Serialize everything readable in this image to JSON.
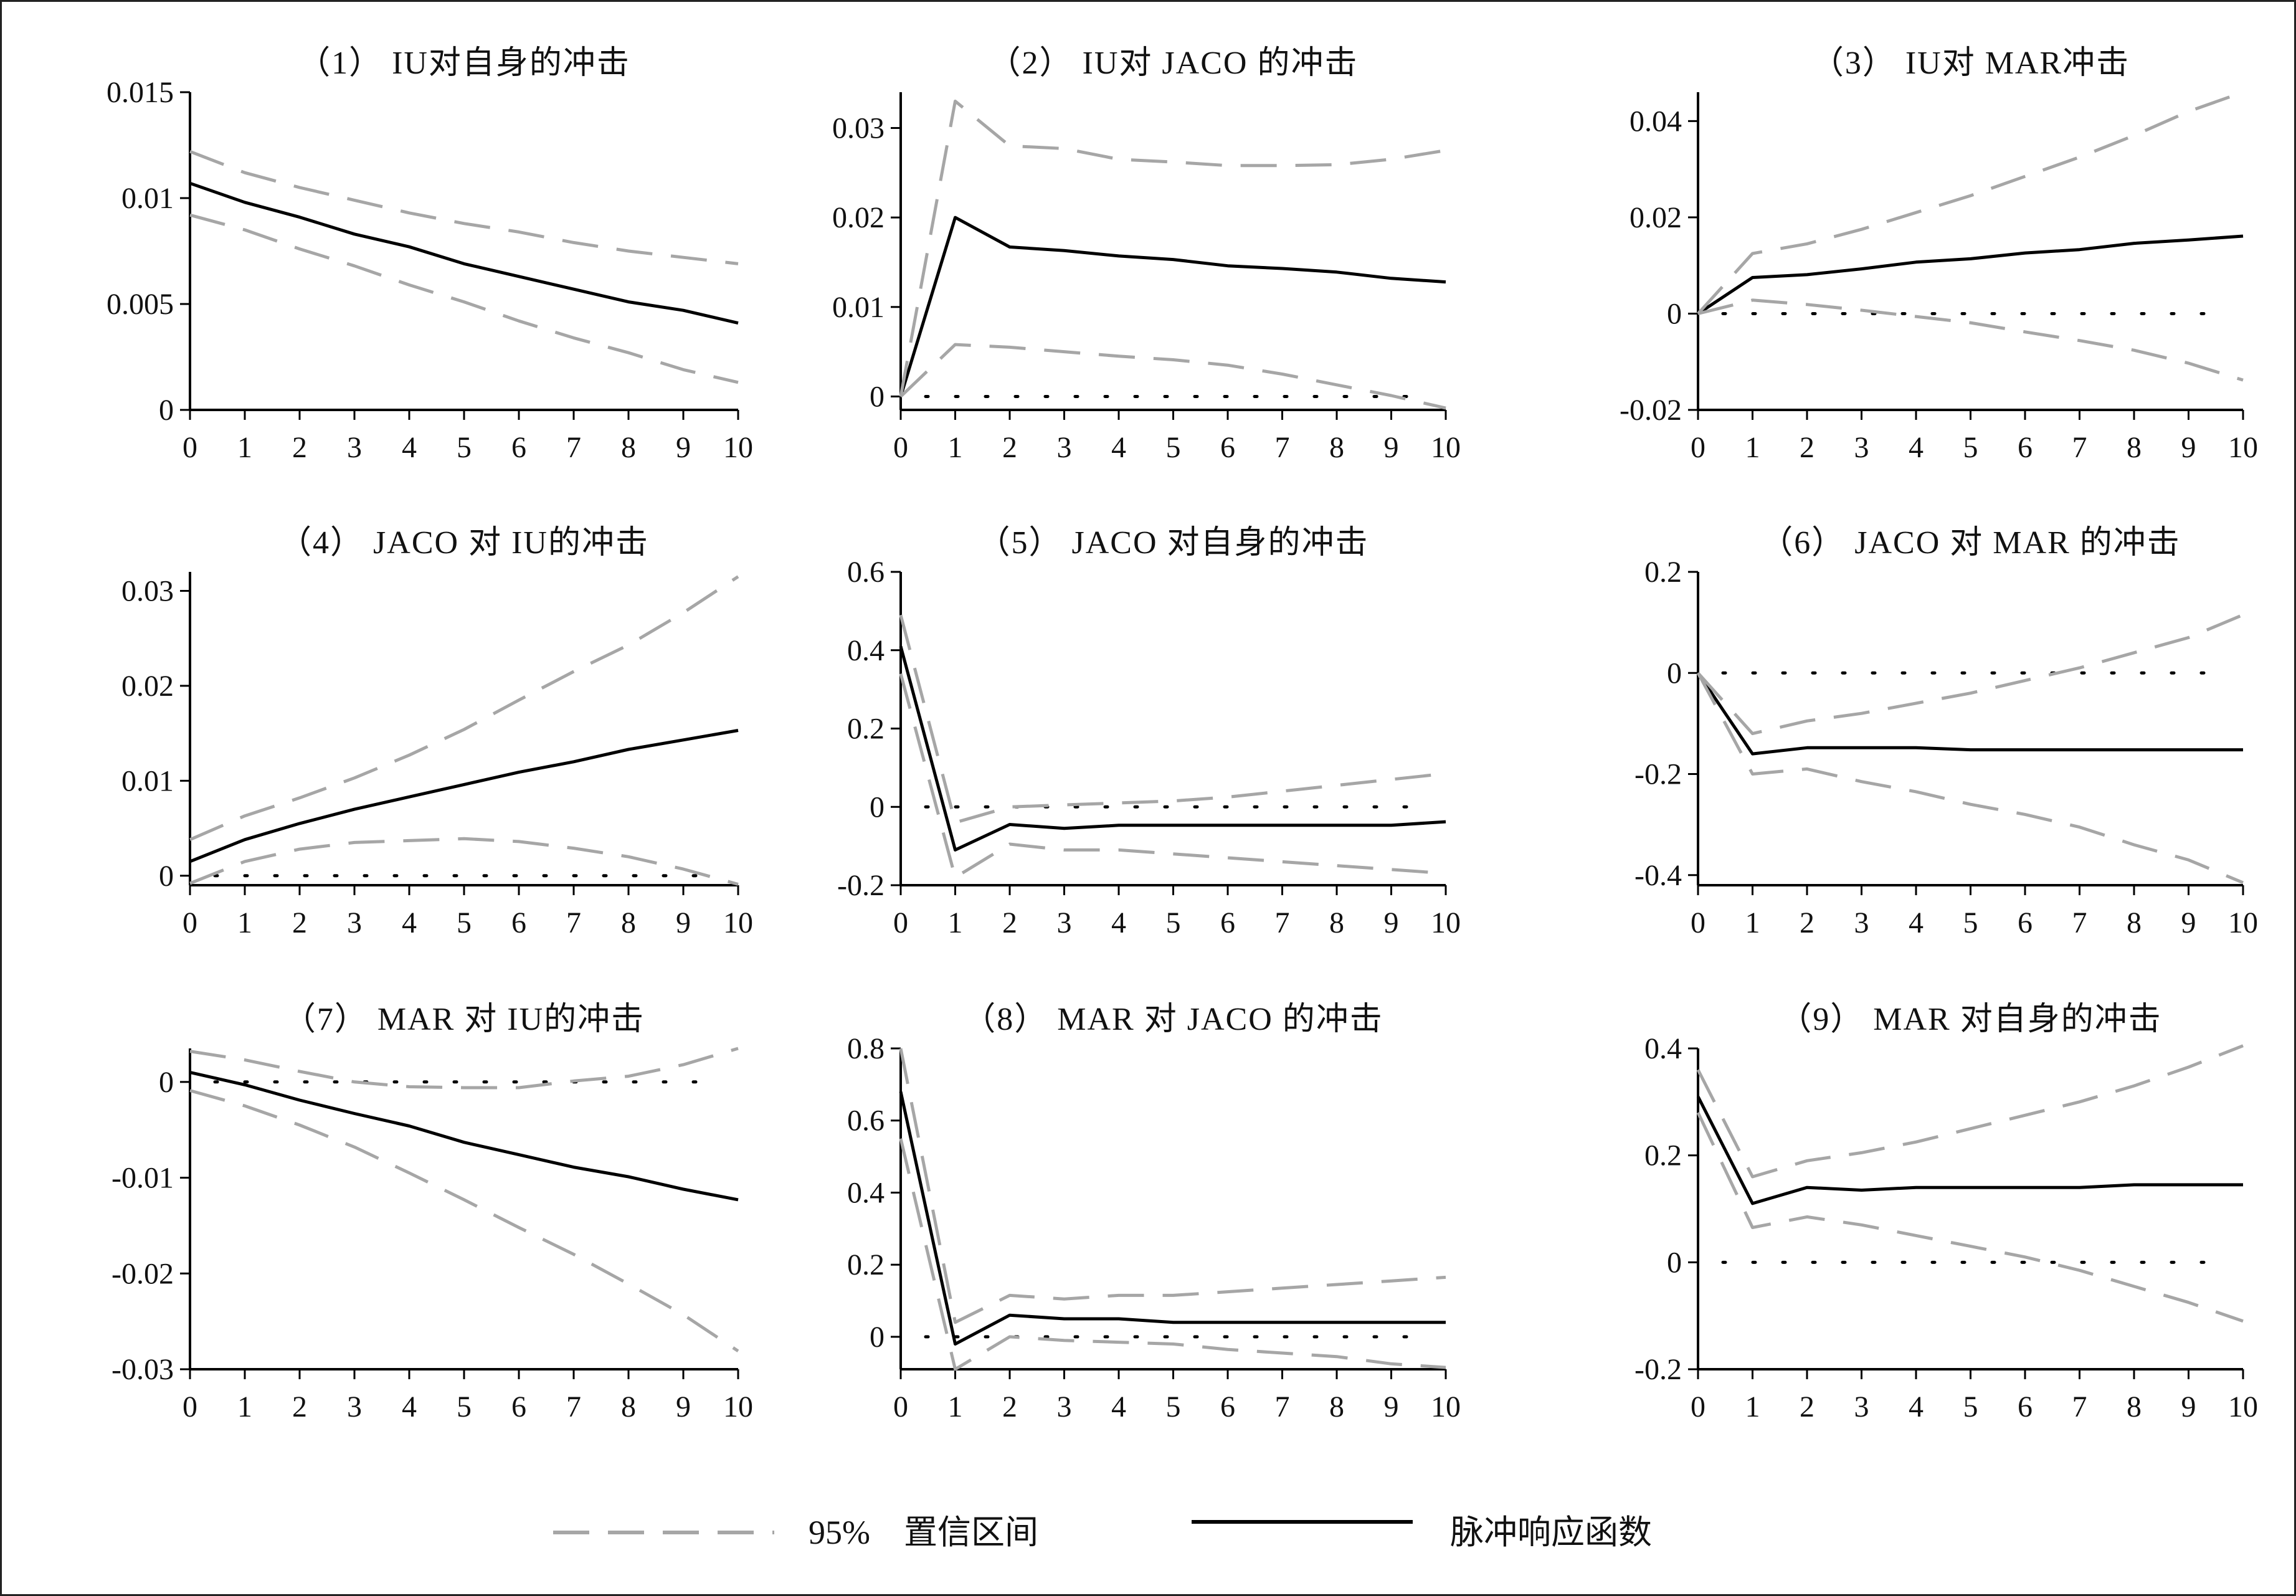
{
  "colors": {
    "irf": "#000000",
    "ci": "#a6a6a6",
    "zero": "#000000"
  },
  "legend": {
    "ci_label": "95%　置信区间",
    "irf_label": "脉冲响应函数",
    "ci_style": "dashed-gray",
    "irf_style": "solid-black"
  },
  "chart_data": [
    {
      "type": "line",
      "title": "（1） IU对自身的冲击",
      "x": [
        0,
        1,
        2,
        3,
        4,
        5,
        6,
        7,
        8,
        9,
        10
      ],
      "xlim": [
        0,
        10
      ],
      "ylim": [
        0,
        0.015
      ],
      "yticks": [
        "0",
        "0.005",
        "0.01",
        "0.015"
      ],
      "ytick_values": [
        0,
        0.005,
        0.01,
        0.015
      ],
      "zero_line": false,
      "series": [
        {
          "role": "irf",
          "values": [
            0.0107,
            0.0098,
            0.0091,
            0.0083,
            0.0077,
            0.0069,
            0.0063,
            0.0057,
            0.0051,
            0.0047,
            0.0041
          ]
        },
        {
          "role": "upper",
          "values": [
            0.0122,
            0.0112,
            0.0105,
            0.0099,
            0.0093,
            0.0088,
            0.0084,
            0.0079,
            0.0075,
            0.0072,
            0.0069
          ]
        },
        {
          "role": "lower",
          "values": [
            0.0092,
            0.0085,
            0.0076,
            0.0068,
            0.0059,
            0.0051,
            0.0042,
            0.0034,
            0.0027,
            0.0019,
            0.0013
          ]
        }
      ]
    },
    {
      "type": "line",
      "title": "（2） IU对 JACO 的冲击",
      "x": [
        0,
        1,
        2,
        3,
        4,
        5,
        6,
        7,
        8,
        9,
        10
      ],
      "xlim": [
        0,
        10
      ],
      "ylim": [
        -0.0015,
        0.034
      ],
      "yticks": [
        "0",
        "0.01",
        "0.02",
        "0.03"
      ],
      "ytick_values": [
        0,
        0.01,
        0.02,
        0.03
      ],
      "zero_line": true,
      "series": [
        {
          "role": "irf",
          "values": [
            0,
            0.02,
            0.0167,
            0.0163,
            0.0157,
            0.0153,
            0.0146,
            0.0143,
            0.0139,
            0.0132,
            0.0128
          ]
        },
        {
          "role": "upper",
          "values": [
            0,
            0.033,
            0.028,
            0.0277,
            0.0265,
            0.0262,
            0.0258,
            0.0258,
            0.0259,
            0.0265,
            0.0275
          ]
        },
        {
          "role": "lower",
          "values": [
            0,
            0.0058,
            0.0055,
            0.005,
            0.0045,
            0.0041,
            0.0035,
            0.0025,
            0.0013,
            0.0001,
            -0.0013
          ]
        }
      ]
    },
    {
      "type": "line",
      "title": "（3） IU对 MAR冲击",
      "x": [
        0,
        1,
        2,
        3,
        4,
        5,
        6,
        7,
        8,
        9,
        10
      ],
      "xlim": [
        0,
        10
      ],
      "ylim": [
        -0.02,
        0.046
      ],
      "yticks": [
        "-0.02",
        "0",
        "0.02",
        "0.04"
      ],
      "ytick_values": [
        -0.02,
        0,
        0.02,
        0.04
      ],
      "zero_line": true,
      "series": [
        {
          "role": "irf",
          "values": [
            0,
            0.0075,
            0.0081,
            0.0093,
            0.0107,
            0.0114,
            0.0126,
            0.0133,
            0.0146,
            0.0153,
            0.0161
          ]
        },
        {
          "role": "upper",
          "values": [
            0,
            0.0125,
            0.0145,
            0.0175,
            0.021,
            0.0245,
            0.0285,
            0.0325,
            0.037,
            0.042,
            0.046
          ]
        },
        {
          "role": "lower",
          "values": [
            0,
            0.0028,
            0.0019,
            0.0007,
            -0.0006,
            -0.0019,
            -0.0038,
            -0.0056,
            -0.0076,
            -0.0103,
            -0.0138
          ]
        }
      ]
    },
    {
      "type": "line",
      "title": "（4） JACO 对 IU的冲击",
      "x": [
        0,
        1,
        2,
        3,
        4,
        5,
        6,
        7,
        8,
        9,
        10
      ],
      "xlim": [
        0,
        10
      ],
      "ylim": [
        -0.001,
        0.032
      ],
      "yticks": [
        "0",
        "0.01",
        "0.02",
        "0.03"
      ],
      "ytick_values": [
        0,
        0.01,
        0.02,
        0.03
      ],
      "zero_line": true,
      "series": [
        {
          "role": "irf",
          "values": [
            0.0015,
            0.0038,
            0.0055,
            0.007,
            0.0083,
            0.0096,
            0.0109,
            0.012,
            0.0133,
            0.0143,
            0.0153
          ]
        },
        {
          "role": "upper",
          "values": [
            0.0038,
            0.0063,
            0.0082,
            0.0103,
            0.0127,
            0.0154,
            0.0185,
            0.0215,
            0.0243,
            0.0277,
            0.0315
          ]
        },
        {
          "role": "lower",
          "values": [
            -0.0008,
            0.0015,
            0.0028,
            0.0035,
            0.0037,
            0.0039,
            0.0036,
            0.0029,
            0.002,
            0.0007,
            -0.0009
          ]
        }
      ]
    },
    {
      "type": "line",
      "title": "（5） JACO 对自身的冲击",
      "x": [
        0,
        1,
        2,
        3,
        4,
        5,
        6,
        7,
        8,
        9,
        10
      ],
      "xlim": [
        0,
        10
      ],
      "ylim": [
        -0.2,
        0.6
      ],
      "yticks": [
        "-0.2",
        "0",
        "0.2",
        "0.4",
        "0.6"
      ],
      "ytick_values": [
        -0.2,
        0,
        0.2,
        0.4,
        0.6
      ],
      "zero_line": true,
      "series": [
        {
          "role": "irf",
          "values": [
            0.41,
            -0.11,
            -0.045,
            -0.055,
            -0.047,
            -0.047,
            -0.047,
            -0.047,
            -0.047,
            -0.047,
            -0.038
          ]
        },
        {
          "role": "upper",
          "values": [
            0.49,
            -0.04,
            0,
            0.005,
            0.01,
            0.015,
            0.025,
            0.04,
            0.055,
            0.07,
            0.085
          ]
        },
        {
          "role": "lower",
          "values": [
            0.34,
            -0.18,
            -0.095,
            -0.11,
            -0.11,
            -0.12,
            -0.13,
            -0.14,
            -0.15,
            -0.16,
            -0.17
          ]
        }
      ]
    },
    {
      "type": "line",
      "title": "（6） JACO 对 MAR 的冲击",
      "x": [
        0,
        1,
        2,
        3,
        4,
        5,
        6,
        7,
        8,
        9,
        10
      ],
      "xlim": [
        0,
        10
      ],
      "ylim": [
        -0.42,
        0.2
      ],
      "yticks": [
        "-0.4",
        "-0.2",
        "0",
        "0.2"
      ],
      "ytick_values": [
        -0.4,
        -0.2,
        0,
        0.2
      ],
      "zero_line": true,
      "series": [
        {
          "role": "irf",
          "values": [
            0,
            -0.16,
            -0.148,
            -0.148,
            -0.148,
            -0.152,
            -0.152,
            -0.152,
            -0.152,
            -0.152,
            -0.152
          ]
        },
        {
          "role": "upper",
          "values": [
            0,
            -0.12,
            -0.095,
            -0.08,
            -0.06,
            -0.04,
            -0.015,
            0.01,
            0.04,
            0.07,
            0.115
          ]
        },
        {
          "role": "lower",
          "values": [
            0,
            -0.2,
            -0.19,
            -0.215,
            -0.235,
            -0.26,
            -0.28,
            -0.305,
            -0.34,
            -0.37,
            -0.415
          ]
        }
      ]
    },
    {
      "type": "line",
      "title": "（7） MAR 对 IU的冲击",
      "x": [
        0,
        1,
        2,
        3,
        4,
        5,
        6,
        7,
        8,
        9,
        10
      ],
      "xlim": [
        0,
        10
      ],
      "ylim": [
        -0.03,
        0.0035
      ],
      "yticks": [
        "-0.03",
        "-0.02",
        "-0.01",
        "0"
      ],
      "ytick_values": [
        -0.03,
        -0.02,
        -0.01,
        0
      ],
      "zero_line": true,
      "series": [
        {
          "role": "irf",
          "values": [
            0.001,
            -0.0003,
            -0.0019,
            -0.0033,
            -0.0046,
            -0.0063,
            -0.0076,
            -0.0089,
            -0.0099,
            -0.0112,
            -0.0123
          ]
        },
        {
          "role": "upper",
          "values": [
            0.0032,
            0.0023,
            0.0011,
            0,
            -0.0005,
            -0.0006,
            -0.0006,
            0.0001,
            0.0006,
            0.0018,
            0.0035
          ]
        },
        {
          "role": "lower",
          "values": [
            -0.0009,
            -0.0025,
            -0.0045,
            -0.0068,
            -0.0095,
            -0.0123,
            -0.0152,
            -0.018,
            -0.0211,
            -0.0243,
            -0.0281
          ]
        }
      ]
    },
    {
      "type": "line",
      "title": "（8） MAR 对 JACO 的冲击",
      "x": [
        0,
        1,
        2,
        3,
        4,
        5,
        6,
        7,
        8,
        9,
        10
      ],
      "xlim": [
        0,
        10
      ],
      "ylim": [
        -0.09,
        0.8
      ],
      "yticks": [
        "0",
        "0.2",
        "0.4",
        "0.6",
        "0.8"
      ],
      "ytick_values": [
        0,
        0.2,
        0.4,
        0.6,
        0.8
      ],
      "zero_line": true,
      "series": [
        {
          "role": "irf",
          "values": [
            0.68,
            -0.02,
            0.06,
            0.05,
            0.05,
            0.04,
            0.04,
            0.04,
            0.04,
            0.04,
            0.04
          ]
        },
        {
          "role": "upper",
          "values": [
            0.8,
            0.04,
            0.115,
            0.105,
            0.115,
            0.115,
            0.125,
            0.135,
            0.145,
            0.155,
            0.165
          ]
        },
        {
          "role": "lower",
          "values": [
            0.55,
            -0.09,
            0,
            -0.01,
            -0.015,
            -0.02,
            -0.035,
            -0.045,
            -0.055,
            -0.075,
            -0.085
          ]
        }
      ]
    },
    {
      "type": "line",
      "title": "（9） MAR 对自身的冲击",
      "x": [
        0,
        1,
        2,
        3,
        4,
        5,
        6,
        7,
        8,
        9,
        10
      ],
      "xlim": [
        0,
        10
      ],
      "ylim": [
        -0.2,
        0.4
      ],
      "yticks": [
        "-0.2",
        "0",
        "0.2",
        "0.4"
      ],
      "ytick_values": [
        -0.2,
        0,
        0.2,
        0.4
      ],
      "zero_line": true,
      "series": [
        {
          "role": "irf",
          "values": [
            0.31,
            0.11,
            0.14,
            0.135,
            0.14,
            0.14,
            0.14,
            0.14,
            0.145,
            0.145,
            0.145
          ]
        },
        {
          "role": "upper",
          "values": [
            0.36,
            0.16,
            0.19,
            0.205,
            0.225,
            0.25,
            0.275,
            0.3,
            0.33,
            0.365,
            0.405
          ]
        },
        {
          "role": "lower",
          "values": [
            0.28,
            0.065,
            0.085,
            0.07,
            0.05,
            0.03,
            0.01,
            -0.015,
            -0.045,
            -0.075,
            -0.11
          ]
        }
      ]
    }
  ]
}
